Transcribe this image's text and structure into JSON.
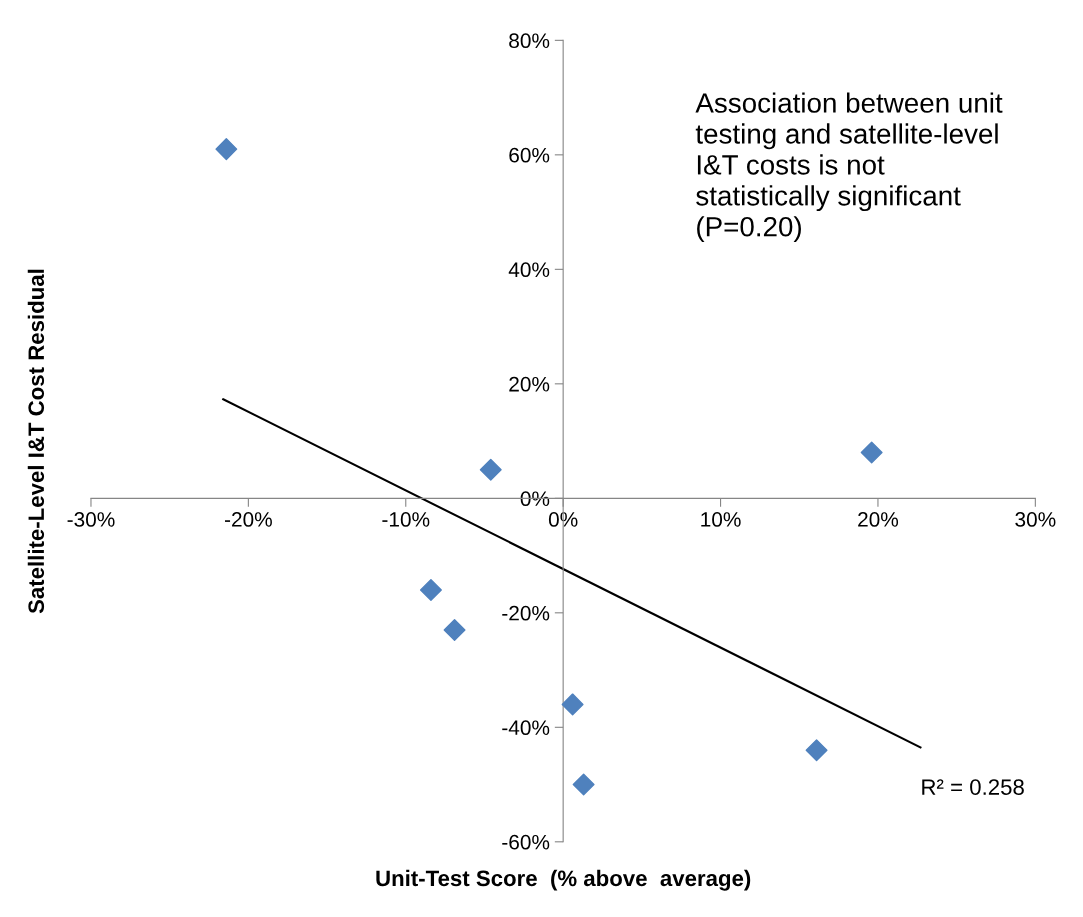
{
  "chart_data": {
    "type": "scatter",
    "xlabel": "Unit-Test Score  (% above  average)",
    "ylabel": "Satellite-Level I&T Cost Residual",
    "series": [
      {
        "color": "#4f81bd",
        "marker": "diamond",
        "x": [
          -21.4,
          -4.6,
          19.6,
          -8.4,
          -6.9,
          0.6,
          1.3,
          16.1
        ],
        "values": [
          61,
          5,
          8,
          -16,
          -23,
          -36,
          -50,
          -44
        ]
      },
      {
        "type": "line",
        "color": "#000000",
        "marker": "none",
        "line_style": "solid",
        "x": [
          -21.6,
          22.7
        ],
        "values": [
          17.3,
          -43.5
        ]
      }
    ],
    "xlim": [
      -30,
      30
    ],
    "xticks": [
      {
        "value": -30,
        "label": "-30%"
      },
      {
        "value": -20,
        "label": "-20%"
      },
      {
        "value": -10,
        "label": "-10%"
      },
      {
        "value": 0,
        "label": "0%"
      },
      {
        "value": 10,
        "label": "10%"
      },
      {
        "value": 20,
        "label": "20%"
      },
      {
        "value": 30,
        "label": "30%"
      }
    ],
    "ylim": [
      -60,
      80
    ],
    "yticks": [
      {
        "value": -60,
        "label": "-60%"
      },
      {
        "value": -40,
        "label": "-40%"
      },
      {
        "value": -20,
        "label": "-20%"
      },
      {
        "value": 0,
        "label": "0%"
      },
      {
        "value": 20,
        "label": "20%"
      },
      {
        "value": 40,
        "label": "40%"
      },
      {
        "value": 60,
        "label": "60%"
      },
      {
        "value": 80,
        "label": "80%"
      }
    ],
    "grid": false,
    "legend": false,
    "annotations": [
      {
        "text": "Association between unit\ntesting and satellite-level\nI&T costs is not\nstatistically significant\n(P=0.20)"
      },
      {
        "text": "R² = 0.258",
        "x": 22.7,
        "y": -43.5
      }
    ]
  }
}
